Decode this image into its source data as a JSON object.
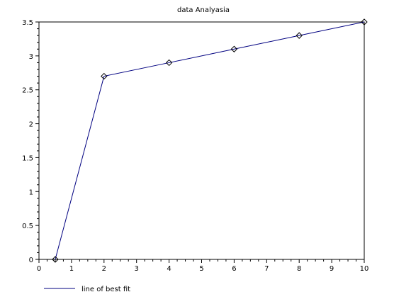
{
  "chart_data": {
    "type": "line",
    "title": "data Analyasia",
    "xlabel": "",
    "ylabel": "",
    "xlim": [
      0,
      10
    ],
    "ylim": [
      0,
      3.5
    ],
    "x_ticks": [
      "0",
      "1",
      "2",
      "3",
      "4",
      "5",
      "6",
      "7",
      "8",
      "9",
      "10"
    ],
    "y_ticks": [
      "0",
      "0.5",
      "1",
      "1.5",
      "2",
      "2.5",
      "3",
      "3.5"
    ],
    "grid": false,
    "legend_position": "bottom-left",
    "series": [
      {
        "name": "line of best fit",
        "color": "#000080",
        "marker": "diamond",
        "x": [
          0.5,
          2,
          4,
          6,
          8,
          10
        ],
        "y": [
          0,
          2.7,
          2.9,
          3.1,
          3.3,
          3.5
        ]
      }
    ]
  }
}
